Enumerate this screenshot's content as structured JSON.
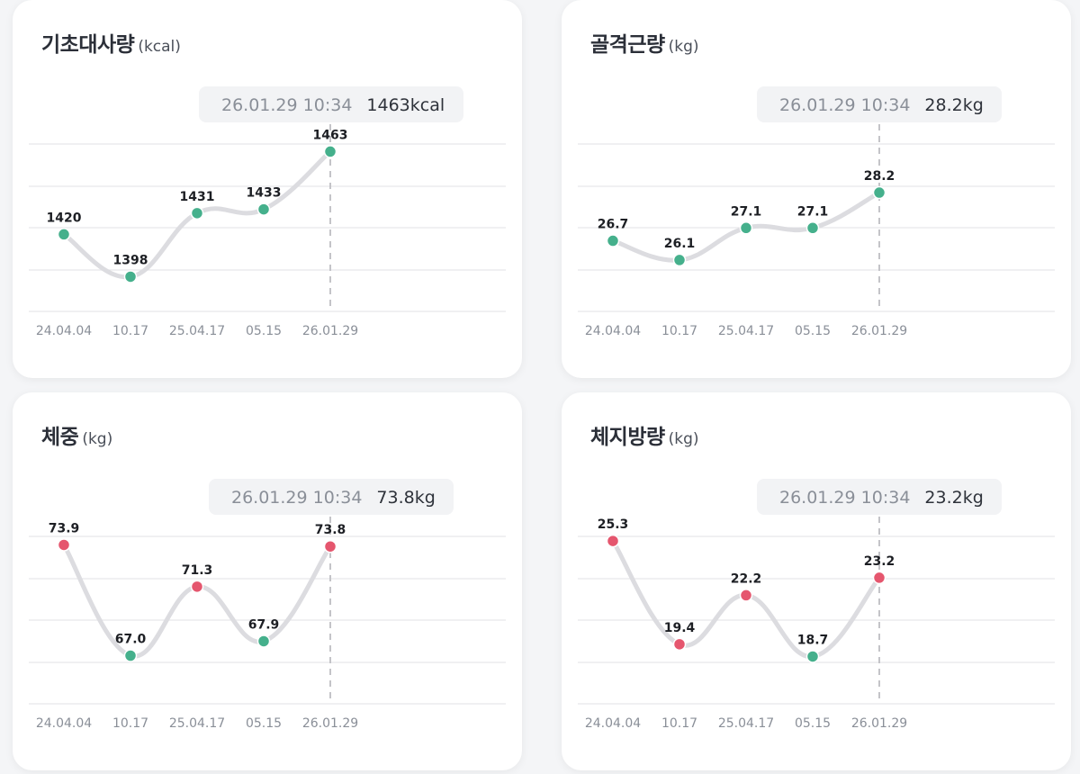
{
  "colors": {
    "up": "#45b08c",
    "down": "#e5566e",
    "line": "#dcdce0",
    "grid": "#e6e6e9",
    "guide": "#c4c4c8",
    "tooltip_bg": "#f2f3f5"
  },
  "chart_data": [
    {
      "type": "line",
      "title": "기초대사량",
      "unit": "(kcal)",
      "categories": [
        "24.04.04",
        "10.17",
        "25.04.17",
        "05.15",
        "26.01.29"
      ],
      "values": [
        1420,
        1398,
        1431,
        1433,
        1463
      ],
      "value_labels": [
        "1420",
        "1398",
        "1431",
        "1433",
        "1463"
      ],
      "point_status": [
        "up",
        "up",
        "up",
        "up",
        "up"
      ],
      "tooltip": {
        "date": "26.01.29 10:34",
        "value": "1463kcal"
      },
      "ylim": [
        1380,
        1480
      ]
    },
    {
      "type": "line",
      "title": "골격근량",
      "unit": "(kg)",
      "categories": [
        "24.04.04",
        "10.17",
        "25.04.17",
        "05.15",
        "26.01.29"
      ],
      "values": [
        26.7,
        26.1,
        27.1,
        27.1,
        28.2
      ],
      "value_labels": [
        "26.7",
        "26.1",
        "27.1",
        "27.1",
        "28.2"
      ],
      "point_status": [
        "up",
        "up",
        "up",
        "up",
        "up"
      ],
      "tooltip": {
        "date": "26.01.29 10:34",
        "value": "28.2kg"
      },
      "ylim": [
        24.5,
        30.5
      ]
    },
    {
      "type": "line",
      "title": "체중",
      "unit": "(kg)",
      "categories": [
        "24.04.04",
        "10.17",
        "25.04.17",
        "05.15",
        "26.01.29"
      ],
      "values": [
        73.9,
        67.0,
        71.3,
        67.9,
        73.8
      ],
      "value_labels": [
        "73.9",
        "67.0",
        "71.3",
        "67.9",
        "73.8"
      ],
      "point_status": [
        "down",
        "up",
        "down",
        "up",
        "down"
      ],
      "tooltip": {
        "date": "26.01.29 10:34",
        "value": "73.8kg"
      },
      "ylim": [
        64,
        76
      ]
    },
    {
      "type": "line",
      "title": "체지방량",
      "unit": "(kg)",
      "categories": [
        "24.04.04",
        "10.17",
        "25.04.17",
        "05.15",
        "26.01.29"
      ],
      "values": [
        25.3,
        19.4,
        22.2,
        18.7,
        23.2
      ],
      "value_labels": [
        "25.3",
        "19.4",
        "22.2",
        "18.7",
        "23.2"
      ],
      "point_status": [
        "down",
        "down",
        "down",
        "up",
        "down"
      ],
      "tooltip": {
        "date": "26.01.29 10:34",
        "value": "23.2kg"
      },
      "ylim": [
        16,
        27
      ]
    }
  ]
}
